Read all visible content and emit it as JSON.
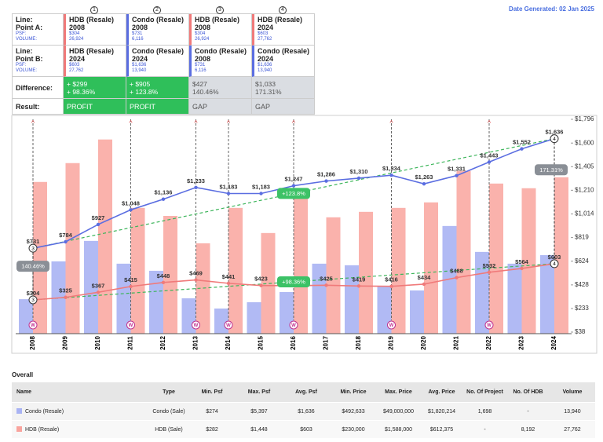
{
  "date_generated": "Date Generated: 02 Jan 2025",
  "comparison": {
    "row_a_labels": [
      "Line:",
      "Point A:",
      "PSF:",
      "VOLUME:"
    ],
    "row_b_labels": [
      "Line:",
      "Point B:",
      "PSF:",
      "VOLUME:"
    ],
    "difference_label": "Difference:",
    "result_label": "Result:",
    "columns": [
      {
        "marker": "1",
        "fill": "#2fbf5a",
        "text_color": "#ffffff",
        "point_a": {
          "name": "HDB (Resale)",
          "year": "2008",
          "psf": "$304",
          "volume": "26,924",
          "color": "#f07a7a"
        },
        "point_b": {
          "name": "HDB (Resale)",
          "year": "2024",
          "psf": "$603",
          "volume": "27,762",
          "color": "#f07a7a"
        },
        "difference": [
          "+ $299",
          "+ 98.36%"
        ],
        "result": "PROFIT"
      },
      {
        "marker": "2",
        "fill": "#2fbf5a",
        "text_color": "#ffffff",
        "point_a": {
          "name": "Condo (Resale)",
          "year": "2008",
          "psf": "$731",
          "volume": "6,116",
          "color": "#5b6ee1"
        },
        "point_b": {
          "name": "Condo (Resale)",
          "year": "2024",
          "psf": "$1,636",
          "volume": "13,940",
          "color": "#5b6ee1"
        },
        "difference": [
          "+ $905",
          "+ 123.8%"
        ],
        "result": "PROFIT"
      },
      {
        "marker": "3",
        "fill": "#dadde2",
        "text_color": "#555555",
        "point_a": {
          "name": "HDB (Resale)",
          "year": "2008",
          "psf": "$304",
          "volume": "26,924",
          "color": "#f07a7a"
        },
        "point_b": {
          "name": "Condo (Resale)",
          "year": "2008",
          "psf": "$731",
          "volume": "6,116",
          "color": "#5b6ee1"
        },
        "difference": [
          "$427",
          "140.46%"
        ],
        "result": "GAP"
      },
      {
        "marker": "4",
        "fill": "#dadde2",
        "text_color": "#555555",
        "point_a": {
          "name": "HDB (Resale)",
          "year": "2024",
          "psf": "$603",
          "volume": "27,762",
          "color": "#f07a7a"
        },
        "point_b": {
          "name": "Condo (Resale)",
          "year": "2024",
          "psf": "$1,636",
          "volume": "13,940",
          "color": "#5b6ee1"
        },
        "difference": [
          "$1,033",
          "171.31%"
        ],
        "result": "GAP"
      }
    ]
  },
  "chart_data": {
    "type": "bar-line",
    "categories": [
      "2008",
      "2009",
      "2010",
      "2011",
      "2012",
      "2013",
      "2014",
      "2015",
      "2016",
      "2017",
      "2018",
      "2019",
      "2020",
      "2021",
      "2022",
      "2023",
      "2024"
    ],
    "series": [
      {
        "name": "Condo (Resale)",
        "type": "line",
        "color": "#5b6ee1",
        "values": [
          731,
          784,
          927,
          1048,
          1136,
          1233,
          1183,
          1183,
          1247,
          1286,
          1310,
          1334,
          1263,
          1331,
          1443,
          1552,
          1636
        ],
        "value_labels": [
          "$731",
          "$784",
          "$927",
          "$1,048",
          "$1,136",
          "$1,233",
          "$1,183",
          "$1,183",
          "$1,247",
          "$1,286",
          "$1,310",
          "$1,334",
          "$1,263",
          "$1,331",
          "$1,443",
          "$1,552",
          "$1,636"
        ]
      },
      {
        "name": "HDB (Resale)",
        "type": "line",
        "color": "#f07a7a",
        "values": [
          304,
          325,
          367,
          415,
          448,
          469,
          441,
          423,
          421,
          425,
          419,
          416,
          434,
          488,
          532,
          564,
          603
        ],
        "value_labels": [
          "$304",
          "$325",
          "$367",
          "$415",
          "$448",
          "$469",
          "$441",
          "$423",
          null,
          "$425",
          "$419",
          "$416",
          "$434",
          "$488",
          "$532",
          "$564",
          "$603"
        ]
      },
      {
        "type": "bar",
        "color": "#a9b3f3",
        "values": [
          6116,
          12830,
          16460,
          12420,
          11160,
          6280,
          4460,
          5580,
          7390,
          12420,
          12140,
          8370,
          7670,
          19110,
          14510,
          12420,
          13940
        ]
      },
      {
        "type": "bar",
        "color": "#f9a49e",
        "values": [
          26924,
          30270,
          34460,
          22320,
          20900,
          16040,
          22320,
          17860,
          24410,
          20650,
          21620,
          22320,
          23300,
          28880,
          26640,
          25810,
          27762
        ]
      }
    ],
    "ylim": [
      38,
      1796
    ],
    "yticks": [
      {
        "value": 38,
        "label": "$38"
      },
      {
        "value": 233,
        "label": "$233"
      },
      {
        "value": 428,
        "label": "$428"
      },
      {
        "value": 624,
        "label": "$624"
      },
      {
        "value": 819,
        "label": "$819"
      },
      {
        "value": 1014,
        "label": "$1,014"
      },
      {
        "value": 1210,
        "label": "$1,210"
      },
      {
        "value": 1405,
        "label": "$1,405"
      },
      {
        "value": 1600,
        "label": "$1,600"
      },
      {
        "value": 1796,
        "label": "$1,796"
      }
    ],
    "trend_color": "#3cb55a",
    "annotations": [
      {
        "text": "+123.8%",
        "color": "#3cc266"
      },
      {
        "text": "+98.36%",
        "color": "#3cc266"
      },
      {
        "text": "140.46%",
        "color": "#8a8f96"
      },
      {
        "text": "171.31%",
        "color": "#8a8f96"
      }
    ],
    "events": [
      {
        "category": "2008",
        "label": "W"
      },
      {
        "category": "2011",
        "label": "W"
      },
      {
        "category": "2013",
        "label": "W"
      },
      {
        "category": "2014",
        "label": "W"
      },
      {
        "category": "2016",
        "label": "W"
      },
      {
        "category": "2019",
        "label": "W"
      },
      {
        "category": "2022",
        "label": "W"
      }
    ]
  },
  "overall": {
    "title": "Overall",
    "headers": [
      "Name",
      "Type",
      "Min. Psf",
      "Max. Psf",
      "Avg. Psf",
      "Min. Price",
      "Max. Price",
      "Avg. Price",
      "No. Of Project",
      "No. Of HDB",
      "Volume"
    ],
    "rows": [
      {
        "color": "#a9b3f3",
        "cells": [
          "Condo (Resale)",
          "Condo (Sale)",
          "$274",
          "$5,397",
          "$1,636",
          "$492,633",
          "$49,000,000",
          "$1,820,214",
          "1,698",
          "-",
          "13,940"
        ]
      },
      {
        "color": "#f9a49e",
        "cells": [
          "HDB (Resale)",
          "HDB (Sale)",
          "$282",
          "$1,448",
          "$603",
          "$230,000",
          "$1,588,000",
          "$612,375",
          "-",
          "8,192",
          "27,762"
        ]
      }
    ]
  }
}
